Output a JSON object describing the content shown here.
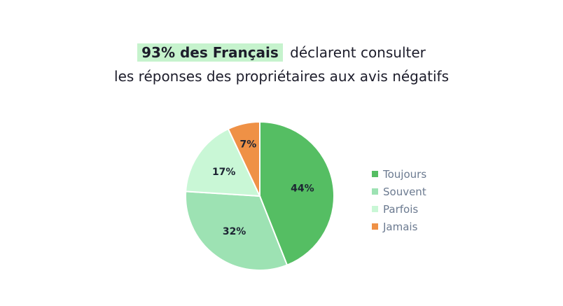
{
  "title": {
    "highlight": "93% des Français",
    "line1_rest": "déclarent consulter",
    "line2": "les réponses des propriétaires aux avis négatifs"
  },
  "colors": {
    "highlight_bg": "#c6f3cd",
    "toujours": "#55be63",
    "souvent": "#9de2b3",
    "parfois": "#c9f7d6",
    "jamais": "#ef9146"
  },
  "chart_data": {
    "type": "pie",
    "title": "93% des Français déclarent consulter les réponses des propriétaires aux avis négatifs",
    "legend_position": "right",
    "categories": [
      "Toujours",
      "Souvent",
      "Parfois",
      "Jamais"
    ],
    "values": [
      44,
      32,
      17,
      7
    ],
    "labels": [
      "44%",
      "32%",
      "17%",
      "7%"
    ],
    "colors": [
      "#55be63",
      "#9de2b3",
      "#c9f7d6",
      "#ef9146"
    ]
  }
}
